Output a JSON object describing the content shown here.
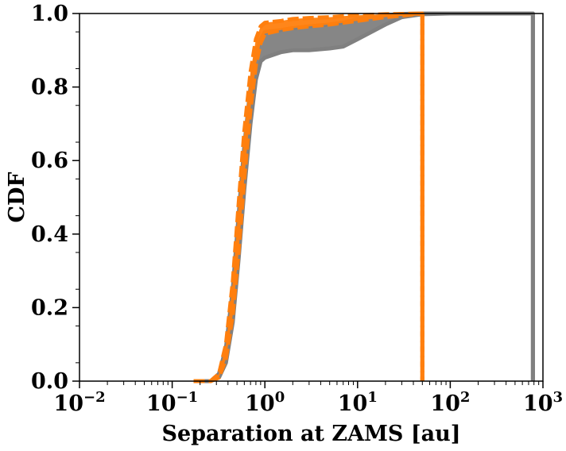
{
  "chart_data": {
    "type": "line",
    "xlabel": "Separation at ZAMS [au]",
    "ylabel": "CDF",
    "xscale": "log",
    "xlim": [
      0.01,
      1000
    ],
    "ylim": [
      0.0,
      1.0
    ],
    "x_ticks": [
      {
        "value": 0.01,
        "base": "10",
        "exp": "−2"
      },
      {
        "value": 0.1,
        "base": "10",
        "exp": "−1"
      },
      {
        "value": 1,
        "base": "10",
        "exp": "0"
      },
      {
        "value": 10,
        "base": "10",
        "exp": "1"
      },
      {
        "value": 100,
        "base": "10",
        "exp": "2"
      },
      {
        "value": 1000,
        "base": "10",
        "exp": "3"
      }
    ],
    "y_ticks": [
      "0.0",
      "0.2",
      "0.4",
      "0.6",
      "0.8",
      "1.0"
    ],
    "grid": false,
    "legend": "none",
    "series": [
      {
        "color": "#808080",
        "style": "solid",
        "band": true,
        "x": [
          0.17,
          0.26,
          0.32,
          0.38,
          0.45,
          0.52,
          0.6,
          0.7,
          0.8,
          0.9,
          1.0,
          1.5,
          2,
          3,
          5,
          7,
          10,
          20,
          30,
          50,
          100,
          300,
          780,
          780
        ],
        "y_low": [
          0.0,
          0.0,
          0.01,
          0.05,
          0.16,
          0.33,
          0.52,
          0.7,
          0.82,
          0.87,
          0.88,
          0.895,
          0.9,
          0.9,
          0.905,
          0.91,
          0.93,
          0.97,
          0.99,
          0.998,
          1.0,
          1.0,
          1.0,
          0.0
        ],
        "y_high": [
          0.0,
          0.0,
          0.02,
          0.09,
          0.25,
          0.45,
          0.64,
          0.8,
          0.89,
          0.93,
          0.95,
          0.955,
          0.96,
          0.965,
          0.97,
          0.975,
          0.985,
          0.995,
          0.999,
          1.0,
          1.0,
          1.0,
          1.0,
          0.0
        ]
      },
      {
        "color": "#ff7f0e",
        "style": "dashed",
        "band": true,
        "x": [
          0.17,
          0.26,
          0.32,
          0.38,
          0.45,
          0.52,
          0.6,
          0.7,
          0.8,
          0.9,
          1.0,
          1.5,
          2,
          3,
          5,
          7,
          10,
          20,
          50,
          50
        ],
        "y_low": [
          0.0,
          0.0,
          0.01,
          0.06,
          0.18,
          0.35,
          0.55,
          0.74,
          0.86,
          0.92,
          0.945,
          0.955,
          0.96,
          0.965,
          0.97,
          0.975,
          0.98,
          0.99,
          1.0,
          0.0
        ],
        "y_high": [
          0.0,
          0.0,
          0.02,
          0.1,
          0.27,
          0.48,
          0.68,
          0.84,
          0.93,
          0.965,
          0.975,
          0.98,
          0.985,
          0.988,
          0.99,
          0.993,
          0.995,
          0.998,
          1.0,
          0.0
        ]
      }
    ]
  }
}
